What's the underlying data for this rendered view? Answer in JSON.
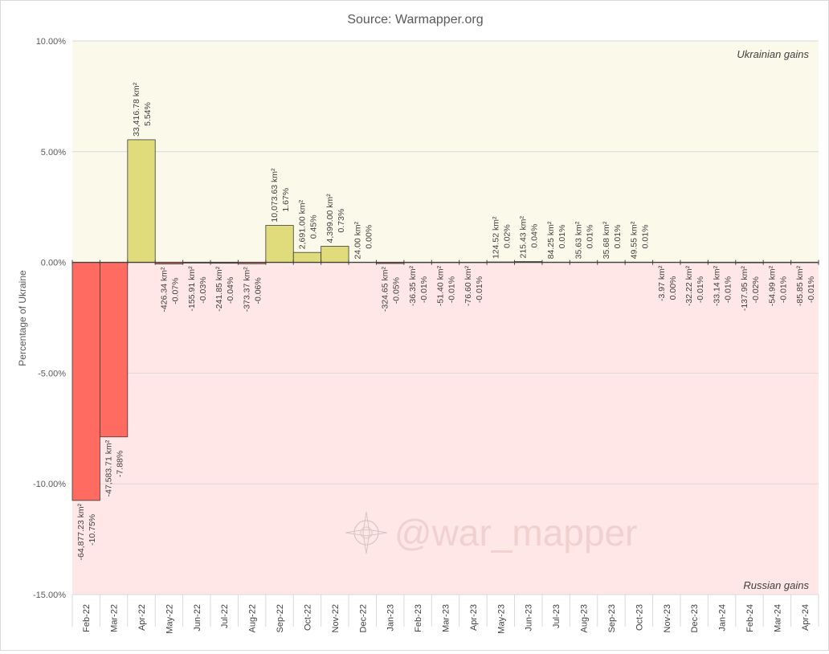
{
  "chart_data": {
    "type": "bar",
    "title": "Source: Warmapper.org",
    "ylabel": "Percentage of Ukraine",
    "xlabel": "",
    "ylim": [
      -15,
      10
    ],
    "y_ticks": [
      "10.00%",
      "5.00%",
      "0.00%",
      "-5.00%",
      "-10.00%",
      "-15.00%"
    ],
    "grid": true,
    "annotations": {
      "upper_region": "Ukrainian gains",
      "lower_region": "Russian gains",
      "watermark": "@war_mapper"
    },
    "categories": [
      "Feb-22",
      "Mar-22",
      "Apr-22",
      "May-22",
      "Jun-22",
      "Jul-22",
      "Aug-22",
      "Sep-22",
      "Oct-22",
      "Nov-22",
      "Dec-22",
      "Jan-23",
      "Feb-23",
      "Mar-23",
      "Apr-23",
      "May-23",
      "Jun-23",
      "Jul-23",
      "Aug-23",
      "Sep-23",
      "Oct-23",
      "Nov-23",
      "Dec-23",
      "Jan-24",
      "Feb-24",
      "Mar-24",
      "Apr-24"
    ],
    "values": [
      -10.75,
      -7.88,
      5.54,
      -0.07,
      -0.03,
      -0.04,
      -0.06,
      1.67,
      0.45,
      0.73,
      0.0,
      -0.05,
      -0.01,
      -0.01,
      -0.01,
      0.02,
      0.04,
      0.01,
      0.01,
      0.01,
      0.01,
      0.0,
      -0.01,
      -0.01,
      -0.02,
      -0.01,
      -0.01
    ],
    "area_labels": [
      "-64,877.23 km²",
      "-47,583.71 km²",
      "33,416.78 km²",
      "-426.34 km²",
      "-155.91 km²",
      "-241.85 km²",
      "-373.37 km²",
      "10,073.63 km²",
      "2,691.00 km²",
      "4,399.00 km²",
      "24.00 km²",
      "-324.65 km²",
      "-36.35 km²",
      "-51.40 km²",
      "-76.60 km²",
      "124.52 km²",
      "215.43 km²",
      "84.25 km²",
      "35.63 km²",
      "35.68 km²",
      "49.55 km²",
      "-3.97 km²",
      "-32.22 km²",
      "-33.14 km²",
      "-137.95 km²",
      "-54.99 km²",
      "-85.85 km²"
    ],
    "pct_labels": [
      "-10.75%",
      "-7.88%",
      "5.54%",
      "-0.07%",
      "-0.03%",
      "-0.04%",
      "-0.06%",
      "1.67%",
      "0.45%",
      "0.73%",
      "0.00%",
      "-0.05%",
      "-0.01%",
      "-0.01%",
      "-0.01%",
      "0.02%",
      "0.04%",
      "0.01%",
      "0.01%",
      "0.01%",
      "0.01%",
      "0.00%",
      "-0.01%",
      "-0.01%",
      "-0.02%",
      "-0.01%",
      "-0.01%"
    ],
    "colors": {
      "gain_bar": "#e0db7b",
      "loss_bar": "#ff6b61",
      "gain_region": "#fbf9ea",
      "loss_region": "#ffe7e7",
      "bar_edge": "#3a3a3a",
      "text": "#404040"
    }
  }
}
